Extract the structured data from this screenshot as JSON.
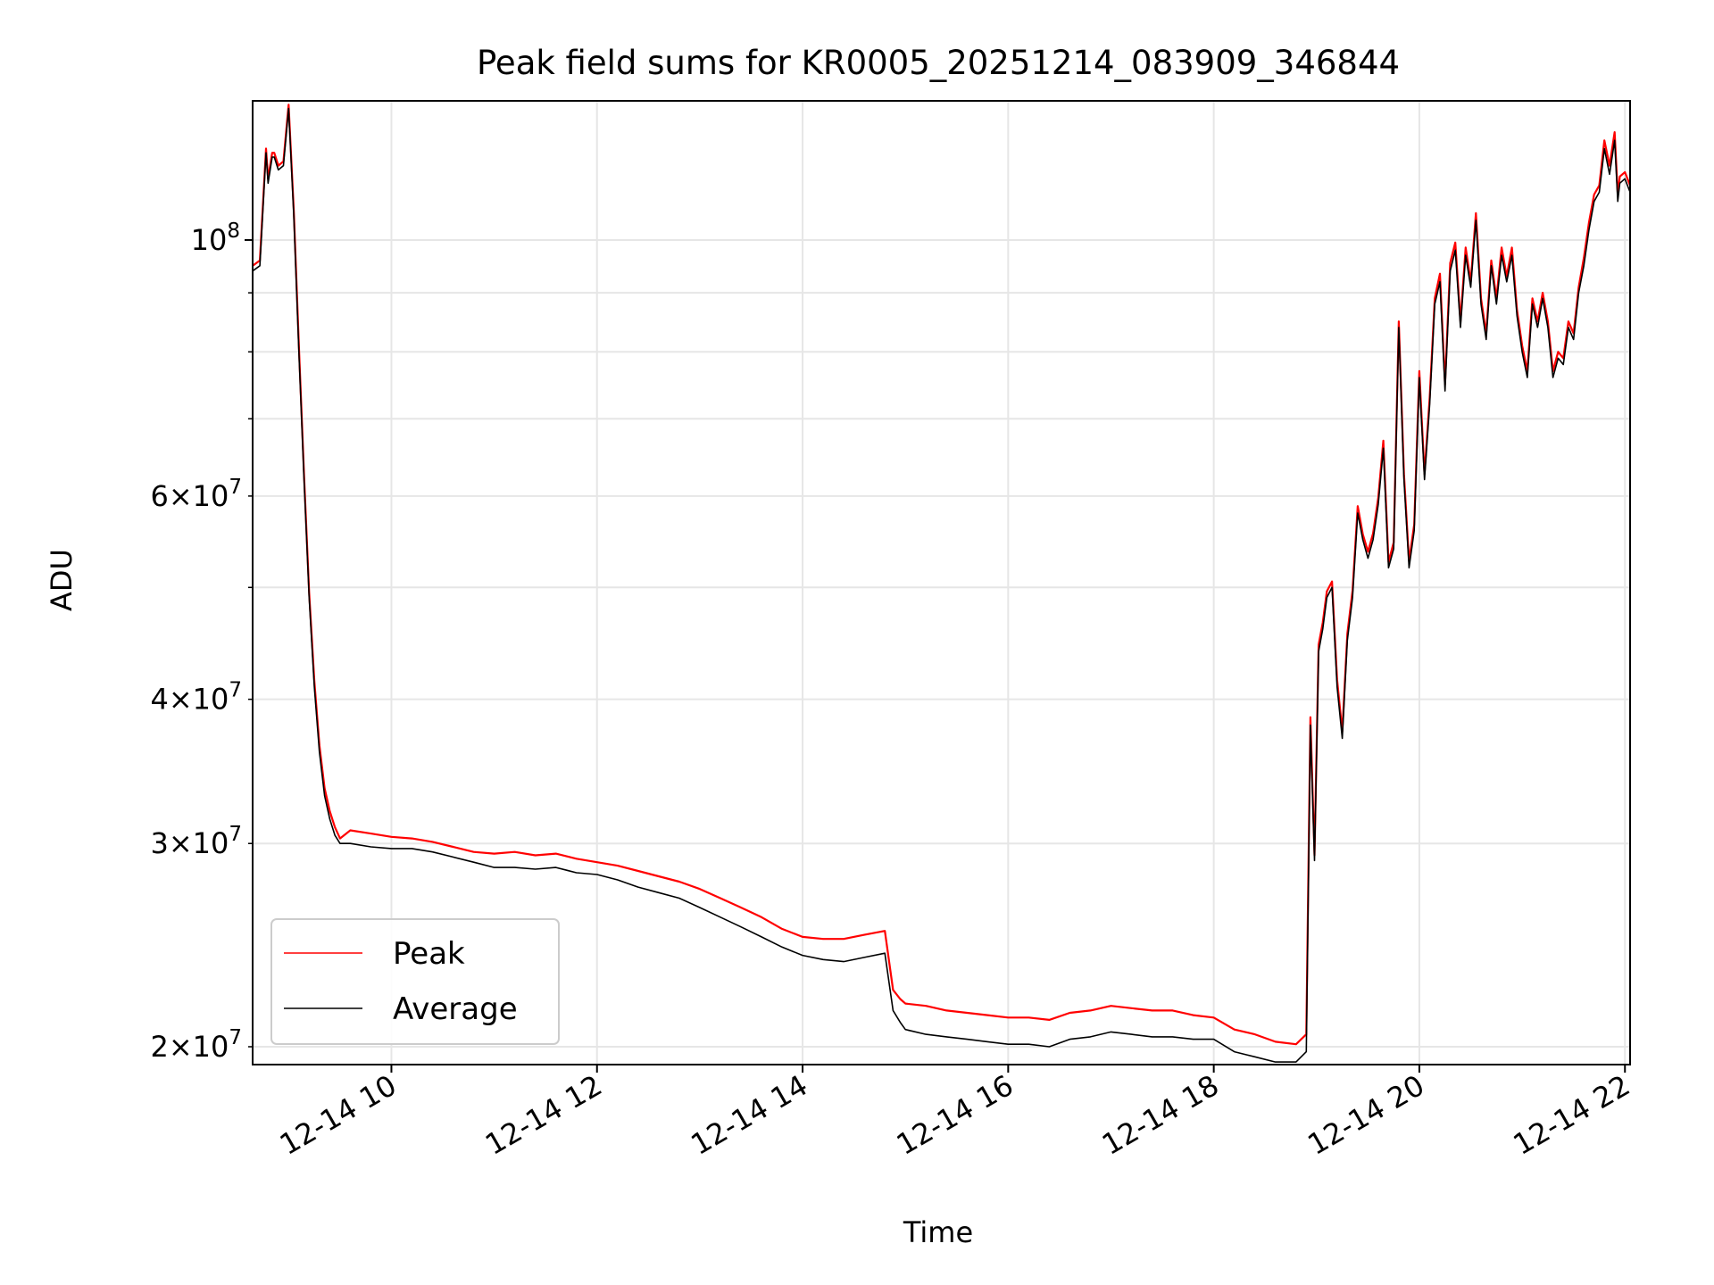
{
  "chart_data": {
    "type": "line",
    "title": "Peak field sums for KR0005_20251214_083909_346844",
    "xlabel": "Time",
    "ylabel": "ADU",
    "yscale": "log",
    "xlim": [
      8.65,
      22.05
    ],
    "ylim": [
      19300000,
      132000000
    ],
    "x_ticks": [
      {
        "value": 10,
        "label": "12-14 10"
      },
      {
        "value": 12,
        "label": "12-14 12"
      },
      {
        "value": 14,
        "label": "12-14 14"
      },
      {
        "value": 16,
        "label": "12-14 16"
      },
      {
        "value": 18,
        "label": "12-14 18"
      },
      {
        "value": 20,
        "label": "12-14 20"
      },
      {
        "value": 22,
        "label": "12-14 22"
      }
    ],
    "y_ticks_major": [
      {
        "value": 100000000,
        "base": "10",
        "exp": "8"
      }
    ],
    "y_ticks_minor": [
      {
        "value": 20000000,
        "mant": "2",
        "exp": "7"
      },
      {
        "value": 30000000,
        "mant": "3",
        "exp": "7"
      },
      {
        "value": 40000000,
        "mant": "4",
        "exp": "7"
      },
      {
        "value": 60000000,
        "mant": "6",
        "exp": "7"
      }
    ],
    "y_grid_unlabeled": [
      50000000,
      70000000,
      80000000,
      90000000
    ],
    "grid": true,
    "legend": {
      "location": "lower-left",
      "entries": [
        "Peak",
        "Average"
      ]
    },
    "series": [
      {
        "name": "Average",
        "color": "#000000",
        "x": [
          8.65,
          8.72,
          8.78,
          8.8,
          8.84,
          8.86,
          8.9,
          8.95,
          9.0,
          9.05,
          9.1,
          9.15,
          9.2,
          9.25,
          9.3,
          9.35,
          9.4,
          9.45,
          9.5,
          9.6,
          9.8,
          10.0,
          10.2,
          10.4,
          10.6,
          10.8,
          11.0,
          11.2,
          11.4,
          11.6,
          11.8,
          12.0,
          12.2,
          12.4,
          12.6,
          12.8,
          13.0,
          13.2,
          13.4,
          13.6,
          13.8,
          14.0,
          14.2,
          14.4,
          14.6,
          14.8,
          14.88,
          14.95,
          15.0,
          15.2,
          15.4,
          15.6,
          15.8,
          16.0,
          16.2,
          16.4,
          16.6,
          16.8,
          17.0,
          17.2,
          17.4,
          17.6,
          17.8,
          18.0,
          18.2,
          18.4,
          18.6,
          18.8,
          18.9,
          18.94,
          18.98,
          19.02,
          19.06,
          19.1,
          19.15,
          19.2,
          19.25,
          19.3,
          19.35,
          19.4,
          19.45,
          19.5,
          19.55,
          19.6,
          19.65,
          19.7,
          19.75,
          19.8,
          19.85,
          19.9,
          19.95,
          20.0,
          20.05,
          20.1,
          20.15,
          20.2,
          20.25,
          20.3,
          20.35,
          20.4,
          20.45,
          20.5,
          20.55,
          20.6,
          20.65,
          20.7,
          20.75,
          20.8,
          20.85,
          20.9,
          20.95,
          21.0,
          21.05,
          21.1,
          21.15,
          21.2,
          21.25,
          21.3,
          21.35,
          21.4,
          21.45,
          21.5,
          21.55,
          21.6,
          21.65,
          21.7,
          21.75,
          21.8,
          21.85,
          21.9,
          21.93,
          21.95,
          22.0,
          22.05
        ],
        "y": [
          94000000,
          95000000,
          119000000,
          112000000,
          118000000,
          118000000,
          115000000,
          116000000,
          130000000,
          105000000,
          80000000,
          62000000,
          49000000,
          41000000,
          36000000,
          33000000,
          31500000,
          30500000,
          30000000,
          30000000,
          29800000,
          29700000,
          29700000,
          29500000,
          29200000,
          28900000,
          28600000,
          28600000,
          28500000,
          28600000,
          28300000,
          28200000,
          27900000,
          27500000,
          27200000,
          26900000,
          26400000,
          25900000,
          25400000,
          24900000,
          24400000,
          24000000,
          23800000,
          23700000,
          23900000,
          24100000,
          21500000,
          21000000,
          20700000,
          20500000,
          20400000,
          20300000,
          20200000,
          20100000,
          20100000,
          20000000,
          20300000,
          20400000,
          20600000,
          20500000,
          20400000,
          20400000,
          20300000,
          20300000,
          19800000,
          19600000,
          19400000,
          19400000,
          19800000,
          38000000,
          29000000,
          44000000,
          46000000,
          49000000,
          50000000,
          41000000,
          37000000,
          45000000,
          49000000,
          58000000,
          55000000,
          53000000,
          55000000,
          59000000,
          66000000,
          52000000,
          54000000,
          84000000,
          62000000,
          52000000,
          56000000,
          76000000,
          62000000,
          72000000,
          88000000,
          92000000,
          74000000,
          94000000,
          98000000,
          84000000,
          97000000,
          91000000,
          104000000,
          88000000,
          82000000,
          95000000,
          88000000,
          97000000,
          92000000,
          97000000,
          86000000,
          80000000,
          76000000,
          88000000,
          84000000,
          89000000,
          84000000,
          76000000,
          79000000,
          78000000,
          84000000,
          82000000,
          90000000,
          95000000,
          102000000,
          108000000,
          110000000,
          120000000,
          114000000,
          122000000,
          108000000,
          112000000,
          113000000,
          110000000
        ]
      },
      {
        "name": "Peak",
        "color": "#ff0000",
        "x": [
          8.65,
          8.72,
          8.78,
          8.8,
          8.84,
          8.86,
          8.9,
          8.95,
          9.0,
          9.05,
          9.1,
          9.15,
          9.2,
          9.25,
          9.3,
          9.35,
          9.4,
          9.45,
          9.5,
          9.6,
          9.8,
          10.0,
          10.2,
          10.4,
          10.6,
          10.8,
          11.0,
          11.2,
          11.4,
          11.6,
          11.8,
          12.0,
          12.2,
          12.4,
          12.6,
          12.8,
          13.0,
          13.2,
          13.4,
          13.6,
          13.8,
          14.0,
          14.2,
          14.4,
          14.6,
          14.8,
          14.88,
          14.95,
          15.0,
          15.2,
          15.4,
          15.6,
          15.8,
          16.0,
          16.2,
          16.4,
          16.6,
          16.8,
          17.0,
          17.2,
          17.4,
          17.6,
          17.8,
          18.0,
          18.2,
          18.4,
          18.6,
          18.8,
          18.9,
          18.94,
          18.98,
          19.02,
          19.06,
          19.1,
          19.15,
          19.2,
          19.25,
          19.3,
          19.35,
          19.4,
          19.45,
          19.5,
          19.55,
          19.6,
          19.65,
          19.7,
          19.75,
          19.8,
          19.85,
          19.9,
          19.95,
          20.0,
          20.05,
          20.1,
          20.15,
          20.2,
          20.25,
          20.3,
          20.35,
          20.4,
          20.45,
          20.5,
          20.55,
          20.6,
          20.65,
          20.7,
          20.75,
          20.8,
          20.85,
          20.9,
          20.95,
          21.0,
          21.05,
          21.1,
          21.15,
          21.2,
          21.25,
          21.3,
          21.35,
          21.4,
          21.45,
          21.5,
          21.55,
          21.6,
          21.65,
          21.7,
          21.75,
          21.8,
          21.85,
          21.9,
          21.93,
          21.95,
          22.0,
          22.05
        ],
        "y": [
          95000000,
          96000000,
          120000000,
          113000000,
          119000000,
          119000000,
          116000000,
          117000000,
          131000000,
          106000000,
          81000000,
          62500000,
          49500000,
          41500000,
          36500000,
          33500000,
          32000000,
          31000000,
          30300000,
          30800000,
          30600000,
          30400000,
          30300000,
          30100000,
          29800000,
          29500000,
          29400000,
          29500000,
          29300000,
          29400000,
          29100000,
          28900000,
          28700000,
          28400000,
          28100000,
          27800000,
          27400000,
          26900000,
          26400000,
          25900000,
          25300000,
          24900000,
          24800000,
          24800000,
          25000000,
          25200000,
          22400000,
          22000000,
          21800000,
          21700000,
          21500000,
          21400000,
          21300000,
          21200000,
          21200000,
          21100000,
          21400000,
          21500000,
          21700000,
          21600000,
          21500000,
          21500000,
          21300000,
          21200000,
          20700000,
          20500000,
          20200000,
          20100000,
          20500000,
          38600000,
          29300000,
          44600000,
          46600000,
          49600000,
          50600000,
          41600000,
          37500000,
          45600000,
          49700000,
          58800000,
          55600000,
          53700000,
          55700000,
          59800000,
          67000000,
          52600000,
          54700000,
          85000000,
          62700000,
          52700000,
          56700000,
          77000000,
          62700000,
          73000000,
          89000000,
          93500000,
          75000000,
          95500000,
          99500000,
          85000000,
          98500000,
          92000000,
          105500000,
          89000000,
          83000000,
          96000000,
          89000000,
          98500000,
          93000000,
          98500000,
          87000000,
          81000000,
          77000000,
          89000000,
          85000000,
          90000000,
          85000000,
          77000000,
          80000000,
          79000000,
          85000000,
          83000000,
          91000000,
          96500000,
          103500000,
          109500000,
          111500000,
          122000000,
          116000000,
          124000000,
          109500000,
          113500000,
          114500000,
          111500000
        ]
      }
    ]
  }
}
